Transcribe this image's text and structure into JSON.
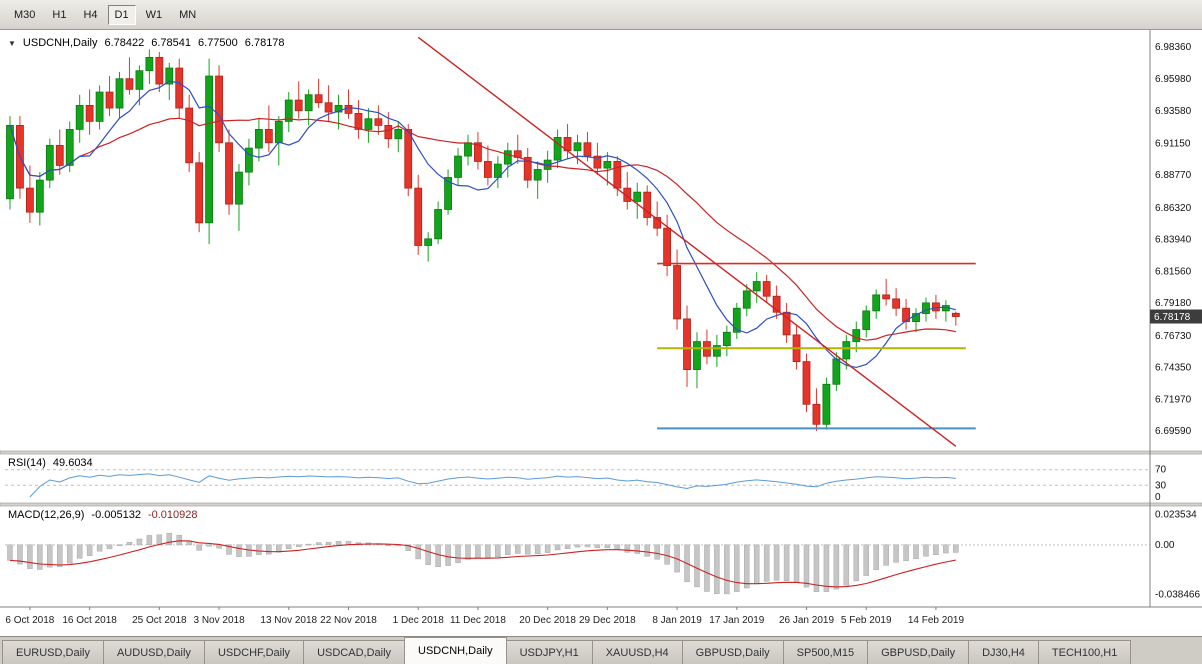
{
  "toolbar": {
    "timeframes": [
      {
        "label": "M30",
        "active": false
      },
      {
        "label": "H1",
        "active": false
      },
      {
        "label": "H4",
        "active": false
      },
      {
        "label": "D1",
        "active": true
      },
      {
        "label": "W1",
        "active": false
      },
      {
        "label": "MN",
        "active": false
      }
    ]
  },
  "chart_header": {
    "collapse_icon": "▼",
    "symbol_label": "USDCNH,Daily",
    "open": "6.78422",
    "high": "6.78541",
    "low": "6.77500",
    "close": "6.78178"
  },
  "price_axis": {
    "labels": [
      "6.98360",
      "6.95980",
      "6.93580",
      "6.91150",
      "6.88770",
      "6.86320",
      "6.83940",
      "6.81560",
      "6.79180",
      "6.76730",
      "6.74350",
      "6.71970",
      "6.69590"
    ],
    "current_price": "6.78178"
  },
  "time_axis": {
    "labels": [
      {
        "text": "6 Oct 2018",
        "slot": 2
      },
      {
        "text": "16 Oct 2018",
        "slot": 8
      },
      {
        "text": "25 Oct 2018",
        "slot": 15
      },
      {
        "text": "3 Nov 2018",
        "slot": 21
      },
      {
        "text": "13 Nov 2018",
        "slot": 28
      },
      {
        "text": "22 Nov 2018",
        "slot": 34
      },
      {
        "text": "1 Dec 2018",
        "slot": 41
      },
      {
        "text": "11 Dec 2018",
        "slot": 47
      },
      {
        "text": "20 Dec 2018",
        "slot": 54
      },
      {
        "text": "29 Dec 2018",
        "slot": 60
      },
      {
        "text": "8 Jan 2019",
        "slot": 67
      },
      {
        "text": "17 Jan 2019",
        "slot": 73
      },
      {
        "text": "26 Jan 2019",
        "slot": 80
      },
      {
        "text": "5 Feb 2019",
        "slot": 86
      },
      {
        "text": "14 Feb 2019",
        "slot": 93
      }
    ]
  },
  "rsi": {
    "label": "RSI(14)",
    "value": "49.6034",
    "axis_labels": [
      "70",
      "30",
      "0"
    ],
    "levels": [
      70,
      30
    ]
  },
  "macd": {
    "label": "MACD(12,26,9)",
    "value_main": "-0.005132",
    "value_signal": "-0.010928",
    "axis_labels": [
      "0.023534",
      "0.00",
      "-0.038466"
    ]
  },
  "tabs": [
    {
      "label": "EURUSD,Daily",
      "active": false
    },
    {
      "label": "AUDUSD,Daily",
      "active": false
    },
    {
      "label": "USDCHF,Daily",
      "active": false
    },
    {
      "label": "USDCAD,Daily",
      "active": false
    },
    {
      "label": "USDCNH,Daily",
      "active": true
    },
    {
      "label": "USDJPY,H1",
      "active": false
    },
    {
      "label": "XAUUSD,H4",
      "active": false
    },
    {
      "label": "GBPUSD,Daily",
      "active": false
    },
    {
      "label": "SP500,M15",
      "active": false
    },
    {
      "label": "GBPUSD,Daily",
      "active": false
    },
    {
      "label": "DJ30,H4",
      "active": false
    },
    {
      "label": "TECH100,H1",
      "active": false
    }
  ],
  "colors": {
    "bull": "#12a51b",
    "bull_border": "#0b7a12",
    "bear": "#e5352b",
    "bear_border": "#b02219",
    "ma_fast": "#2e4fc4",
    "ma_slow": "#cc2222",
    "trendline": "#cc2222",
    "rsi_line": "#5b9bd5",
    "macd_hist": "#c6c6c6",
    "macd_signal": "#cc2222",
    "badge_bg": "#3d3d3d",
    "badge_text": "#ffffff"
  },
  "chart_data": {
    "type": "candlestick",
    "symbol": "USDCNH",
    "timeframe": "Daily",
    "slots": 115,
    "y_range": {
      "max": 6.995,
      "min": 6.681
    },
    "macd_range": {
      "max": 0.03,
      "min": -0.048
    },
    "rsi_period": 14,
    "macd_params": {
      "fast": 12,
      "slow": 26,
      "signal": 9,
      "slow_seed_offset": 0.012
    },
    "overlays": {
      "ma_fast_period": 8,
      "ma_slow_period": 20,
      "trendline": {
        "x1_slot": 41,
        "price1": 6.991,
        "x2_slot": 95,
        "price2": 6.6845
      },
      "hlines": [
        {
          "price": 6.8215,
          "x1_slot": 65,
          "x2_slot": 97,
          "color": "#e02b20",
          "width": 1.6
        },
        {
          "price": 6.758,
          "x1_slot": 65,
          "x2_slot": 96,
          "color": "#b5b500",
          "width": 2
        },
        {
          "price": 6.698,
          "x1_slot": 65,
          "x2_slot": 97,
          "color": "#4a90c8",
          "width": 2
        }
      ]
    },
    "ohlc": [
      [
        6.87,
        6.932,
        6.862,
        6.925
      ],
      [
        6.925,
        6.932,
        6.87,
        6.878
      ],
      [
        6.878,
        6.895,
        6.852,
        6.86
      ],
      [
        6.86,
        6.89,
        6.85,
        6.884
      ],
      [
        6.884,
        6.915,
        6.878,
        6.91
      ],
      [
        6.91,
        6.922,
        6.888,
        6.895
      ],
      [
        6.895,
        6.928,
        6.89,
        6.922
      ],
      [
        6.922,
        6.948,
        6.912,
        6.94
      ],
      [
        6.94,
        6.952,
        6.918,
        6.928
      ],
      [
        6.928,
        6.955,
        6.922,
        6.95
      ],
      [
        6.95,
        6.962,
        6.932,
        6.938
      ],
      [
        6.938,
        6.965,
        6.93,
        6.96
      ],
      [
        6.96,
        6.976,
        6.948,
        6.952
      ],
      [
        6.952,
        6.97,
        6.94,
        6.966
      ],
      [
        6.966,
        6.982,
        6.956,
        6.976
      ],
      [
        6.976,
        6.98,
        6.95,
        6.956
      ],
      [
        6.956,
        6.972,
        6.944,
        6.968
      ],
      [
        6.968,
        6.975,
        6.93,
        6.938
      ],
      [
        6.938,
        6.948,
        6.89,
        6.897
      ],
      [
        6.897,
        6.905,
        6.845,
        6.852
      ],
      [
        6.852,
        6.975,
        6.836,
        6.962
      ],
      [
        6.962,
        6.97,
        6.905,
        6.912
      ],
      [
        6.912,
        6.922,
        6.858,
        6.866
      ],
      [
        6.866,
        6.896,
        6.846,
        6.89
      ],
      [
        6.89,
        6.915,
        6.88,
        6.908
      ],
      [
        6.908,
        6.93,
        6.898,
        6.922
      ],
      [
        6.922,
        6.94,
        6.905,
        6.912
      ],
      [
        6.912,
        6.932,
        6.895,
        6.928
      ],
      [
        6.928,
        6.95,
        6.92,
        6.944
      ],
      [
        6.944,
        6.958,
        6.93,
        6.936
      ],
      [
        6.936,
        6.952,
        6.925,
        6.948
      ],
      [
        6.948,
        6.96,
        6.938,
        6.942
      ],
      [
        6.942,
        6.955,
        6.928,
        6.935
      ],
      [
        6.935,
        6.948,
        6.922,
        6.94
      ],
      [
        6.94,
        6.952,
        6.93,
        6.934
      ],
      [
        6.934,
        6.944,
        6.915,
        6.922
      ],
      [
        6.922,
        6.938,
        6.912,
        6.93
      ],
      [
        6.93,
        6.94,
        6.918,
        6.925
      ],
      [
        6.925,
        6.935,
        6.908,
        6.915
      ],
      [
        6.915,
        6.928,
        6.905,
        6.922
      ],
      [
        6.922,
        6.926,
        6.872,
        6.878
      ],
      [
        6.878,
        6.888,
        6.828,
        6.835
      ],
      [
        6.835,
        6.845,
        6.823,
        6.84
      ],
      [
        6.84,
        6.868,
        6.836,
        6.862
      ],
      [
        6.862,
        6.892,
        6.858,
        6.886
      ],
      [
        6.886,
        6.908,
        6.88,
        6.902
      ],
      [
        6.902,
        6.918,
        6.895,
        6.912
      ],
      [
        6.912,
        6.92,
        6.892,
        6.898
      ],
      [
        6.898,
        6.91,
        6.88,
        6.886
      ],
      [
        6.886,
        6.902,
        6.878,
        6.896
      ],
      [
        6.896,
        6.912,
        6.886,
        6.906
      ],
      [
        6.906,
        6.918,
        6.896,
        6.901
      ],
      [
        6.901,
        6.908,
        6.878,
        6.884
      ],
      [
        6.884,
        6.898,
        6.87,
        6.892
      ],
      [
        6.892,
        6.906,
        6.882,
        6.899
      ],
      [
        6.899,
        6.922,
        6.893,
        6.916
      ],
      [
        6.916,
        6.926,
        6.9,
        6.906
      ],
      [
        6.906,
        6.918,
        6.896,
        6.912
      ],
      [
        6.912,
        6.92,
        6.898,
        6.902
      ],
      [
        6.902,
        6.912,
        6.888,
        6.893
      ],
      [
        6.893,
        6.905,
        6.88,
        6.898
      ],
      [
        6.898,
        6.902,
        6.872,
        6.878
      ],
      [
        6.878,
        6.89,
        6.862,
        6.868
      ],
      [
        6.868,
        6.882,
        6.855,
        6.875
      ],
      [
        6.875,
        6.88,
        6.85,
        6.856
      ],
      [
        6.856,
        6.868,
        6.842,
        6.848
      ],
      [
        6.848,
        6.858,
        6.812,
        6.82
      ],
      [
        6.82,
        6.832,
        6.772,
        6.78
      ],
      [
        6.78,
        6.79,
        6.729,
        6.742
      ],
      [
        6.742,
        6.77,
        6.728,
        6.763
      ],
      [
        6.763,
        6.772,
        6.746,
        6.752
      ],
      [
        6.752,
        6.768,
        6.744,
        6.76
      ],
      [
        6.76,
        6.775,
        6.752,
        6.77
      ],
      [
        6.77,
        6.792,
        6.765,
        6.788
      ],
      [
        6.788,
        6.806,
        6.782,
        6.801
      ],
      [
        6.801,
        6.815,
        6.792,
        6.808
      ],
      [
        6.808,
        6.813,
        6.792,
        6.797
      ],
      [
        6.797,
        6.805,
        6.78,
        6.785
      ],
      [
        6.785,
        6.792,
        6.762,
        6.768
      ],
      [
        6.768,
        6.775,
        6.742,
        6.748
      ],
      [
        6.748,
        6.754,
        6.71,
        6.716
      ],
      [
        6.716,
        6.728,
        6.696,
        6.701
      ],
      [
        6.701,
        6.736,
        6.697,
        6.731
      ],
      [
        6.731,
        6.755,
        6.726,
        6.75
      ],
      [
        6.75,
        6.768,
        6.742,
        6.763
      ],
      [
        6.763,
        6.778,
        6.755,
        6.772
      ],
      [
        6.772,
        6.79,
        6.766,
        6.786
      ],
      [
        6.786,
        6.802,
        6.78,
        6.798
      ],
      [
        6.798,
        6.81,
        6.79,
        6.795
      ],
      [
        6.795,
        6.803,
        6.782,
        6.788
      ],
      [
        6.788,
        6.795,
        6.772,
        6.778
      ],
      [
        6.778,
        6.788,
        6.77,
        6.784
      ],
      [
        6.784,
        6.796,
        6.778,
        6.792
      ],
      [
        6.792,
        6.798,
        6.78,
        6.786
      ],
      [
        6.786,
        6.794,
        6.778,
        6.79
      ],
      [
        6.78422,
        6.78541,
        6.775,
        6.78178
      ]
    ]
  }
}
